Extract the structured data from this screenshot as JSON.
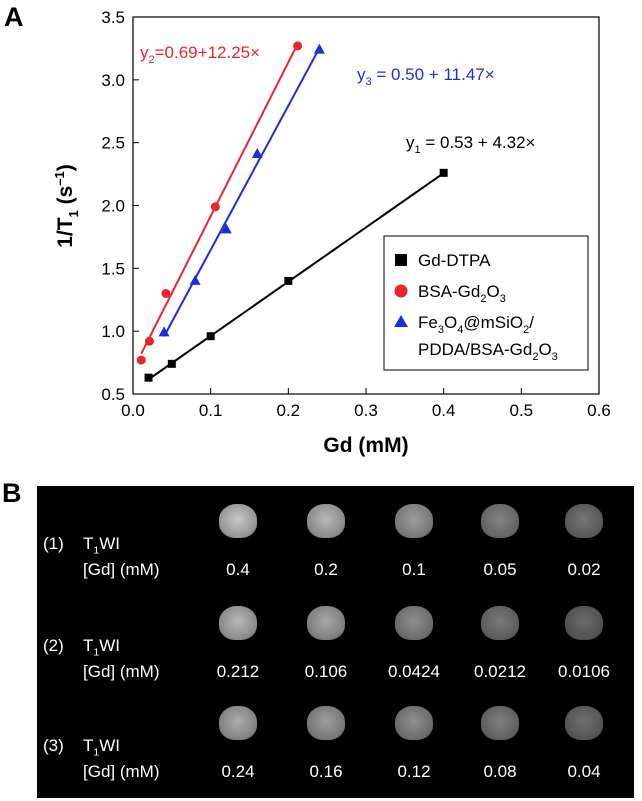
{
  "panel_a": {
    "letter": "A",
    "chart_data": {
      "type": "scatter",
      "xlabel": "Gd (mM)",
      "ylabel_main": "1/T",
      "ylabel_sub": "1",
      "ylabel_unit": " (s",
      "ylabel_sup": "–1",
      "ylabel_end": ")",
      "xlim": [
        0,
        0.6
      ],
      "ylim": [
        0.5,
        3.5
      ],
      "xticks": [
        "0.0",
        "0.1",
        "0.2",
        "0.3",
        "0.4",
        "0.5",
        "0.6"
      ],
      "yticks": [
        "0.5",
        "1.0",
        "1.5",
        "2.0",
        "2.5",
        "3.0",
        "3.5"
      ],
      "grid": false,
      "legend_position": "lower-right",
      "series": [
        {
          "name": "Gd-DTPA",
          "color": "#000000",
          "marker": "square",
          "x": [
            0.02,
            0.05,
            0.1,
            0.2,
            0.4
          ],
          "y": [
            0.63,
            0.74,
            0.96,
            1.4,
            2.26
          ],
          "fit": {
            "intercept": 0.53,
            "slope": 4.32,
            "x_range": [
              0.02,
              0.4
            ]
          },
          "equation": {
            "pre": "y",
            "sub": "1",
            "post": " = 0.53 + 4.32×"
          }
        },
        {
          "name": "BSA-Gd2O3",
          "color": "#e8262c",
          "marker": "circle",
          "x": [
            0.0106,
            0.0212,
            0.0424,
            0.106,
            0.212
          ],
          "y": [
            0.77,
            0.92,
            1.3,
            1.99,
            3.27
          ],
          "fit": {
            "intercept": 0.69,
            "slope": 12.25,
            "x_range": [
              0.0106,
              0.212
            ]
          },
          "equation": {
            "pre": "y",
            "sub": "2",
            "post": "=0.69+12.25×"
          }
        },
        {
          "name": "Fe3O4@mSiO2/PDDA/BSA-Gd2O3",
          "color": "#1c2ed8",
          "marker": "triangle",
          "x": [
            0.04,
            0.08,
            0.12,
            0.16,
            0.24
          ],
          "y": [
            0.99,
            1.4,
            1.81,
            2.41,
            3.24
          ],
          "fit": {
            "intercept": 0.5,
            "slope": 11.47,
            "x_range": [
              0.04,
              0.24
            ]
          },
          "equation": {
            "pre": "y",
            "sub": "3",
            "post": " = 0.50 + 11.47×"
          }
        }
      ]
    },
    "legend": {
      "item1": "Gd-DTPA",
      "item2_a": "BSA-Gd",
      "item2_s1": "2",
      "item2_b": "O",
      "item2_s2": "3",
      "item3_a": "Fe",
      "item3_s1": "3",
      "item3_b": "O",
      "item3_s2": "4",
      "item3_c": "@mSiO",
      "item3_s3": "2",
      "item3_d": "/",
      "item3_line2_a": "PDDA/BSA-Gd",
      "item3_line2_s1": "2",
      "item3_line2_b": "O",
      "item3_line2_s2": "3"
    }
  },
  "panel_b": {
    "letter": "B",
    "rows": [
      {
        "index": "(1)",
        "label_pre": "T",
        "label_sub": "1",
        "label_post": "WI",
        "conc_label": "[Gd] (mM)",
        "concentrations": [
          "0.4",
          "0.2",
          "0.1",
          "0.05",
          "0.02"
        ],
        "brightness": [
          0.78,
          0.72,
          0.62,
          0.52,
          0.46
        ]
      },
      {
        "index": "(2)",
        "label_pre": "T",
        "label_sub": "1",
        "label_post": "WI",
        "conc_label": "[Gd] (mM)",
        "concentrations": [
          "0.212",
          "0.106",
          "0.0424",
          "0.0212",
          "0.0106"
        ],
        "brightness": [
          0.72,
          0.66,
          0.56,
          0.48,
          0.42
        ]
      },
      {
        "index": "(3)",
        "label_pre": "T",
        "label_sub": "1",
        "label_post": "WI",
        "conc_label": "[Gd] (mM)",
        "concentrations": [
          "0.24",
          "0.16",
          "0.12",
          "0.08",
          "0.04"
        ],
        "brightness": [
          0.68,
          0.62,
          0.56,
          0.5,
          0.44
        ]
      }
    ]
  }
}
